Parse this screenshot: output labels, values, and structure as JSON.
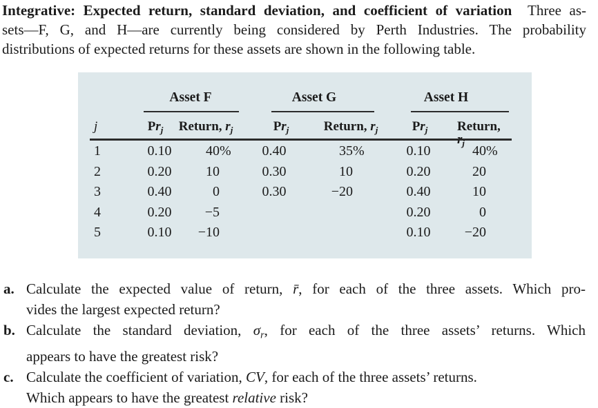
{
  "intro": {
    "lines": [
      {
        "just": true,
        "segments": [
          {
            "t": "Integrative: Expected return, standard deviation, and coefficient of variation",
            "s": "b"
          },
          {
            "t": "  Three as-"
          }
        ]
      },
      {
        "just": true,
        "segments": [
          {
            "t": "sets—F, G, and H—are currently being considered by Perth Industries. The probability"
          }
        ]
      },
      {
        "segments": [
          {
            "t": "distributions of expected returns for these assets are shown in the following table."
          }
        ]
      }
    ]
  },
  "table": {
    "panel_bg": "#dee8eb",
    "rule_color": "#2b2b2b",
    "groups": [
      {
        "label": "Asset F"
      },
      {
        "label": "Asset G"
      },
      {
        "label": "Asset H"
      }
    ],
    "row_index_header": [
      {
        "t": "j",
        "s": "i"
      }
    ],
    "prob_header": [
      {
        "t": "P",
        "s": "b"
      },
      {
        "t": "r",
        "s": "bi"
      },
      {
        "t": "j",
        "s": "subi"
      }
    ],
    "return_header": [
      {
        "t": "Return, ",
        "s": "b"
      },
      {
        "t": "r",
        "s": "i"
      },
      {
        "t": "j",
        "s": "subi"
      }
    ],
    "rows": [
      {
        "j": "1",
        "f_pr": "0.10",
        "f_ret": "40%",
        "g_pr": "0.40",
        "g_ret": "35%",
        "h_pr": "0.10",
        "h_ret": "40%"
      },
      {
        "j": "2",
        "f_pr": "0.20",
        "f_ret": "10",
        "g_pr": "0.30",
        "g_ret": "10",
        "h_pr": "0.20",
        "h_ret": "20"
      },
      {
        "j": "3",
        "f_pr": "0.40",
        "f_ret": "0",
        "g_pr": "0.30",
        "g_ret": "−20",
        "h_pr": "0.40",
        "h_ret": "10"
      },
      {
        "j": "4",
        "f_pr": "0.20",
        "f_ret": "−5",
        "g_pr": "",
        "g_ret": "",
        "h_pr": "0.20",
        "h_ret": "0"
      },
      {
        "j": "5",
        "f_pr": "0.10",
        "f_ret": "−10",
        "g_pr": "",
        "g_ret": "",
        "h_pr": "0.10",
        "h_ret": "−20"
      }
    ]
  },
  "questions": [
    {
      "label": "a.",
      "lines": [
        {
          "just": true,
          "segments": [
            {
              "t": "Calculate the expected value of return, "
            },
            {
              "t": "r̄",
              "s": "i"
            },
            {
              "t": ", for each of the three assets. Which pro-"
            }
          ]
        },
        {
          "segments": [
            {
              "t": "vides the largest expected return?"
            }
          ]
        }
      ]
    },
    {
      "label": "b.",
      "lines": [
        {
          "just": true,
          "segments": [
            {
              "t": "Calculate the standard deviation, "
            },
            {
              "t": "σ",
              "s": "i"
            },
            {
              "t": "r",
              "s": "subi"
            },
            {
              "t": ", for each of the three assets’ returns. Which"
            }
          ]
        },
        {
          "segments": [
            {
              "t": "appears to have the greatest risk?"
            }
          ]
        }
      ]
    },
    {
      "label": "c.",
      "lines": [
        {
          "segments": [
            {
              "t": "Calculate the coefficient of variation, "
            },
            {
              "t": "CV",
              "s": "i"
            },
            {
              "t": ", for each of the three assets’ returns."
            }
          ]
        },
        {
          "segments": [
            {
              "t": "Which appears to have the greatest "
            },
            {
              "t": "relative",
              "s": "i"
            },
            {
              "t": " risk?"
            }
          ]
        }
      ]
    }
  ]
}
